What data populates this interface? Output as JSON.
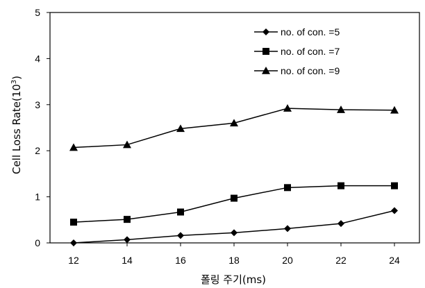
{
  "chart_data": {
    "type": "line",
    "title": "",
    "xlabel": "폴링 주기(ms)",
    "ylabel": "Cell Loss Rate(10",
    "ylabel_exp": "3",
    "ylabel_close": ")",
    "x": [
      12,
      14,
      16,
      18,
      20,
      22,
      24
    ],
    "xlim": [
      12,
      24
    ],
    "ylim": [
      0,
      5
    ],
    "yticks": [
      0,
      1,
      2,
      3,
      4,
      5
    ],
    "grid": false,
    "legend_position": "top-right",
    "series": [
      {
        "name": "no. of con. =5",
        "marker": "diamond",
        "values": [
          0.0,
          0.07,
          0.16,
          0.22,
          0.31,
          0.42,
          0.7
        ]
      },
      {
        "name": "no. of con. =7",
        "marker": "square",
        "values": [
          0.45,
          0.51,
          0.67,
          0.97,
          1.2,
          1.24,
          1.24
        ]
      },
      {
        "name": "no. of con. =9",
        "marker": "triangle",
        "values": [
          2.07,
          2.13,
          2.48,
          2.6,
          2.92,
          2.89,
          2.88
        ]
      }
    ]
  }
}
